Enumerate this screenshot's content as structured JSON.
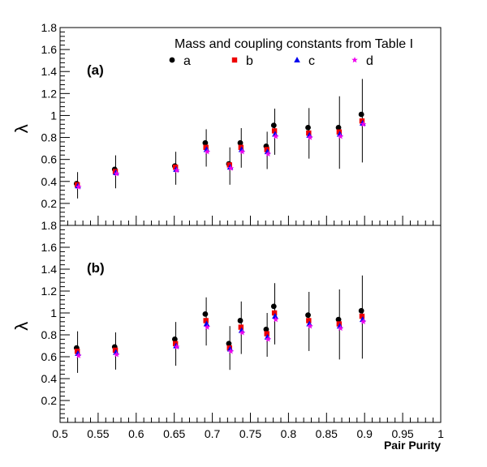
{
  "legend_title": "Mass and coupling constants from Table I",
  "legend_items": [
    {
      "label": "a",
      "color": "#000000",
      "marker": "circle"
    },
    {
      "label": "b",
      "color": "#ee0000",
      "marker": "square"
    },
    {
      "label": "c",
      "color": "#0000ee",
      "marker": "triangle"
    },
    {
      "label": "d",
      "color": "#ee00ee",
      "marker": "star"
    }
  ],
  "x_tick_labels": [
    "0.5",
    "0.55",
    "0.6",
    "0.65",
    "0.7",
    "0.75",
    "0.8",
    "0.85",
    "0.9",
    "0.95",
    "1"
  ],
  "chart_data": [
    {
      "type": "scatter",
      "panel_label": "(a)",
      "ylabel": "λ",
      "xlabel": "",
      "xlim": [
        0.5,
        1.0
      ],
      "ylim": [
        0.0,
        1.8
      ],
      "y_ticks": [
        "0.2",
        "0.4",
        "0.6",
        "0.8",
        "1",
        "1.2",
        "1.4",
        "1.6",
        "1.8"
      ],
      "x": [
        0.523,
        0.573,
        0.652,
        0.692,
        0.723,
        0.738,
        0.772,
        0.782,
        0.827,
        0.867,
        0.897
      ],
      "errors": [
        0.12,
        0.15,
        0.15,
        0.17,
        0.17,
        0.18,
        0.17,
        0.21,
        0.23,
        0.33,
        0.38
      ],
      "series": [
        {
          "name": "a",
          "values": [
            0.38,
            0.51,
            0.54,
            0.75,
            0.56,
            0.75,
            0.72,
            0.91,
            0.89,
            0.89,
            1.01
          ]
        },
        {
          "name": "b",
          "values": [
            0.37,
            0.49,
            0.53,
            0.71,
            0.55,
            0.71,
            0.69,
            0.86,
            0.84,
            0.85,
            0.95
          ]
        },
        {
          "name": "c",
          "values": [
            0.36,
            0.48,
            0.51,
            0.69,
            0.53,
            0.69,
            0.67,
            0.83,
            0.82,
            0.83,
            0.93
          ]
        },
        {
          "name": "d",
          "values": [
            0.35,
            0.47,
            0.5,
            0.67,
            0.52,
            0.67,
            0.65,
            0.81,
            0.8,
            0.81,
            0.92
          ]
        }
      ]
    },
    {
      "type": "scatter",
      "panel_label": "(b)",
      "ylabel": "λ",
      "xlabel": "Pair Purity",
      "xlim": [
        0.5,
        1.0
      ],
      "ylim": [
        0.0,
        1.8
      ],
      "y_ticks": [
        "0.2",
        "0.4",
        "0.6",
        "0.8",
        "1",
        "1.2",
        "1.4",
        "1.6",
        "1.8"
      ],
      "x": [
        0.523,
        0.573,
        0.652,
        0.692,
        0.723,
        0.738,
        0.772,
        0.782,
        0.827,
        0.867,
        0.897
      ],
      "errors": [
        0.19,
        0.17,
        0.2,
        0.22,
        0.2,
        0.24,
        0.2,
        0.28,
        0.27,
        0.32,
        0.38
      ],
      "series": [
        {
          "name": "a",
          "values": [
            0.68,
            0.69,
            0.76,
            0.99,
            0.72,
            0.93,
            0.85,
            1.06,
            0.98,
            0.94,
            1.02
          ]
        },
        {
          "name": "b",
          "values": [
            0.65,
            0.66,
            0.72,
            0.93,
            0.68,
            0.87,
            0.81,
            1.0,
            0.93,
            0.9,
            0.97
          ]
        },
        {
          "name": "c",
          "values": [
            0.63,
            0.64,
            0.7,
            0.9,
            0.67,
            0.84,
            0.78,
            0.97,
            0.9,
            0.88,
            0.94
          ]
        },
        {
          "name": "d",
          "values": [
            0.61,
            0.62,
            0.69,
            0.87,
            0.65,
            0.82,
            0.76,
            0.94,
            0.88,
            0.86,
            0.92
          ]
        }
      ]
    }
  ]
}
